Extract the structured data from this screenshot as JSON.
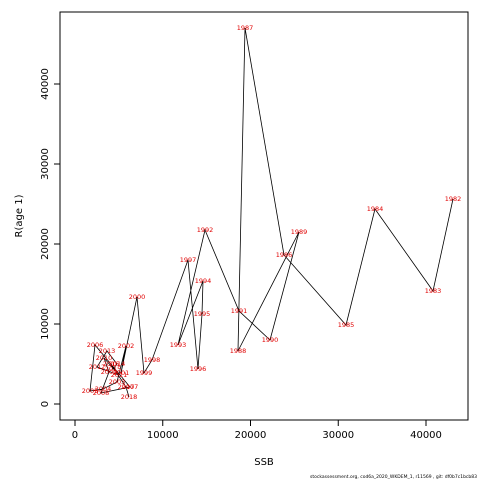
{
  "chart_data": {
    "type": "line",
    "x_label": "SSB",
    "y_label": "R(age 1)",
    "footnote": "stockassessment.org,  cod6a_2020_WKDEM_1,  r11569 ,  git: df0b7c1bcb83",
    "labels": [
      "1982",
      "1983",
      "1984",
      "1985",
      "1986",
      "1987",
      "1988",
      "1989",
      "1990",
      "1991",
      "1992",
      "1993",
      "1994",
      "1995",
      "1996",
      "1997",
      "1998",
      "1999",
      "2000",
      "2001",
      "2002",
      "2003",
      "2004",
      "2005",
      "2006",
      "2007",
      "2008",
      "2009",
      "2010",
      "2011",
      "2012",
      "2013",
      "2014",
      "2015",
      "2016",
      "2017",
      "2018"
    ],
    "x": [
      43077,
      40798,
      34188,
      30883,
      23818,
      19373,
      18575,
      25527,
      22222,
      18689,
      14815,
      11738,
      14587,
      14473,
      14017,
      12877,
      8775,
      7863,
      7066,
      5242,
      5812,
      4786,
      3191,
      1709,
      2279,
      6268,
      2963,
      3875,
      3305,
      5014,
      2507,
      3647,
      4786,
      4330,
      4103,
      5812,
      6154
    ],
    "series": [
      {
        "name": "R(age 1)",
        "color": "#000000",
        "values": [
          25625,
          14125,
          24375,
          9875,
          18625,
          47000,
          6625,
          21500,
          8000,
          11625,
          21750,
          7375,
          15375,
          11250,
          4375,
          18000,
          5500,
          3875,
          13375,
          3875,
          7250,
          2750,
          1875,
          1625,
          7375,
          2125,
          1375,
          4000,
          5750,
          3625,
          4625,
          6625,
          5000,
          4375,
          5000,
          2125,
          875
        ]
      }
    ],
    "label_color": "#e00000",
    "xlim": [
      -1709,
      44786
    ],
    "ylim": [
      -2000,
      49000
    ],
    "xticks": [
      0,
      10000,
      20000,
      30000,
      40000
    ],
    "yticks": [
      0,
      10000,
      20000,
      30000,
      40000
    ]
  }
}
